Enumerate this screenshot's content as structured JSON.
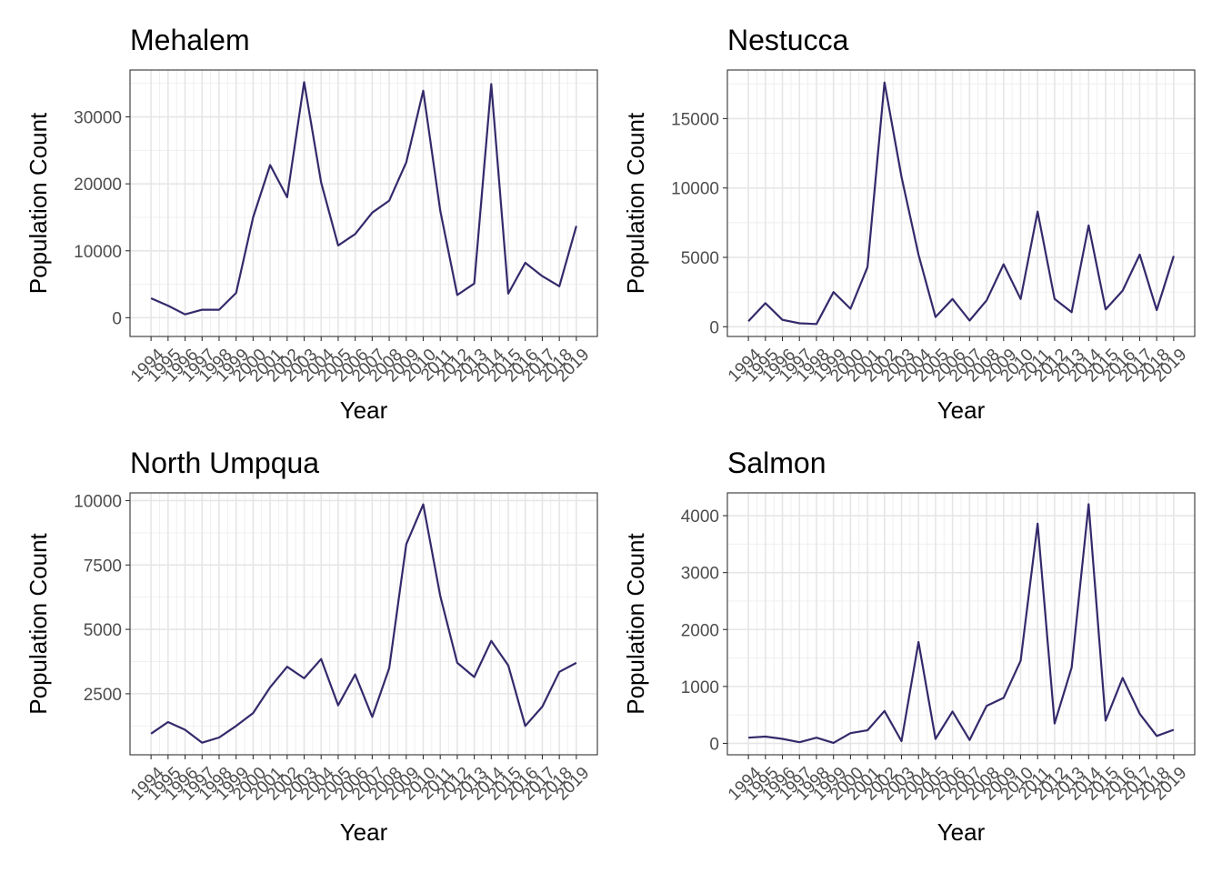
{
  "chart_data": [
    {
      "type": "line",
      "title": "Mehalem",
      "xlabel": "Year",
      "ylabel": "Population Count",
      "x": [
        "1994",
        "1995",
        "1996",
        "1997",
        "1998",
        "1999",
        "2000",
        "2001",
        "2002",
        "2003",
        "2004",
        "2005",
        "2006",
        "2007",
        "2008",
        "2009",
        "2010",
        "2011",
        "2012",
        "2013",
        "2014",
        "2015",
        "2016",
        "2017",
        "2018",
        "2019"
      ],
      "series": [
        {
          "values": [
            2900,
            1800,
            500,
            1200,
            1200,
            3700,
            15000,
            22800,
            18000,
            35200,
            20200,
            10800,
            12500,
            15700,
            17500,
            23200,
            33900,
            16000,
            3400,
            5100,
            34900,
            3600,
            8200,
            6200,
            4700,
            13700
          ],
          "color": "#332a6b"
        }
      ],
      "ylim": [
        -2800,
        37000
      ],
      "yticks": [
        0,
        10000,
        20000,
        30000
      ],
      "grid": true
    },
    {
      "type": "line",
      "title": "Nestucca",
      "xlabel": "Year",
      "ylabel": "Population Count",
      "x": [
        "1994",
        "1995",
        "1996",
        "1997",
        "1998",
        "1999",
        "2000",
        "2001",
        "2002",
        "2003",
        "2004",
        "2005",
        "2006",
        "2007",
        "2008",
        "2009",
        "2010",
        "2011",
        "2012",
        "2013",
        "2014",
        "2015",
        "2016",
        "2017",
        "2018",
        "2019"
      ],
      "series": [
        {
          "values": [
            400,
            1700,
            500,
            250,
            200,
            2500,
            1300,
            4300,
            17600,
            10800,
            5200,
            700,
            2000,
            450,
            1900,
            4500,
            2000,
            8300,
            2000,
            1050,
            7300,
            1250,
            2600,
            5200,
            1200,
            5100
          ],
          "color": "#332a6b"
        }
      ],
      "ylim": [
        -700,
        18500
      ],
      "yticks": [
        0,
        5000,
        10000,
        15000
      ],
      "grid": true
    },
    {
      "type": "line",
      "title": "North Umpqua",
      "xlabel": "Year",
      "ylabel": "Population Count",
      "x": [
        "1994",
        "1995",
        "1996",
        "1997",
        "1998",
        "1999",
        "2000",
        "2001",
        "2002",
        "2003",
        "2004",
        "2005",
        "2006",
        "2007",
        "2008",
        "2009",
        "2010",
        "2011",
        "2012",
        "2013",
        "2014",
        "2015",
        "2016",
        "2017",
        "2018",
        "2019"
      ],
      "series": [
        {
          "values": [
            950,
            1400,
            1100,
            600,
            800,
            1250,
            1750,
            2750,
            3550,
            3100,
            3850,
            2050,
            3250,
            1600,
            3500,
            8300,
            9850,
            6300,
            3700,
            3150,
            4550,
            3600,
            1250,
            2000,
            3350,
            3700
          ],
          "color": "#332a6b"
        }
      ],
      "ylim": [
        130,
        10300
      ],
      "yticks": [
        2500,
        5000,
        7500,
        10000
      ],
      "grid": true
    },
    {
      "type": "line",
      "title": "Salmon",
      "xlabel": "Year",
      "ylabel": "Population Count",
      "x": [
        "1994",
        "1995",
        "1996",
        "1997",
        "1998",
        "1999",
        "2000",
        "2001",
        "2002",
        "2003",
        "2004",
        "2005",
        "2006",
        "2007",
        "2008",
        "2009",
        "2010",
        "2011",
        "2012",
        "2013",
        "2014",
        "2015",
        "2016",
        "2017",
        "2018",
        "2019"
      ],
      "series": [
        {
          "values": [
            100,
            120,
            80,
            20,
            100,
            10,
            180,
            230,
            570,
            40,
            1780,
            80,
            560,
            60,
            660,
            800,
            1450,
            3860,
            350,
            1330,
            4200,
            400,
            1150,
            520,
            130,
            240
          ],
          "color": "#332a6b"
        }
      ],
      "ylim": [
        -200,
        4400
      ],
      "yticks": [
        0,
        1000,
        2000,
        3000,
        4000
      ],
      "grid": true
    }
  ]
}
